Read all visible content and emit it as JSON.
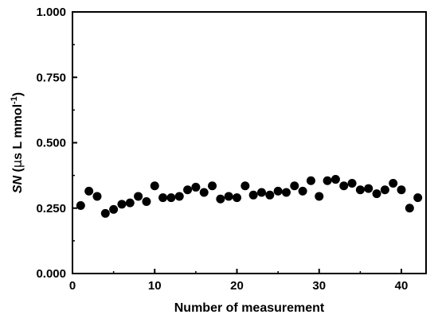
{
  "chart_data": {
    "type": "scatter",
    "xlabel": "Number of measurement",
    "ylabel_parts": {
      "italic": "SN",
      "open": " (",
      "mu": "μ",
      "unit_main": "s L mmol",
      "unit_sup": "-1",
      "close": ")"
    },
    "xlim": [
      0,
      43
    ],
    "ylim": [
      0.0,
      1.0
    ],
    "x_ticks": [
      0,
      10,
      20,
      30,
      40
    ],
    "x_tick_labels": [
      "0",
      "10",
      "20",
      "30",
      "40"
    ],
    "y_ticks": [
      0.0,
      0.25,
      0.5,
      0.75,
      1.0
    ],
    "y_tick_labels": [
      "0.000",
      "0.250",
      "0.500",
      "0.750",
      "1.000"
    ],
    "grid": false,
    "legend": "none",
    "marker_color": "#000000",
    "series": [
      {
        "x": [
          1,
          2,
          3,
          4,
          5,
          6,
          7,
          8,
          9,
          10,
          11,
          12,
          13,
          14,
          15,
          16,
          17,
          18,
          19,
          20,
          21,
          22,
          23,
          24,
          25,
          26,
          27,
          28,
          29,
          30,
          31,
          32,
          33,
          34,
          35,
          36,
          37,
          38,
          39,
          40,
          41,
          42
        ],
        "y": [
          0.26,
          0.315,
          0.295,
          0.23,
          0.245,
          0.265,
          0.27,
          0.295,
          0.275,
          0.335,
          0.29,
          0.29,
          0.295,
          0.32,
          0.33,
          0.31,
          0.335,
          0.285,
          0.295,
          0.29,
          0.335,
          0.3,
          0.31,
          0.3,
          0.315,
          0.31,
          0.335,
          0.315,
          0.355,
          0.295,
          0.355,
          0.36,
          0.335,
          0.345,
          0.32,
          0.325,
          0.305,
          0.32,
          0.345,
          0.32,
          0.25,
          0.29
        ]
      }
    ]
  }
}
